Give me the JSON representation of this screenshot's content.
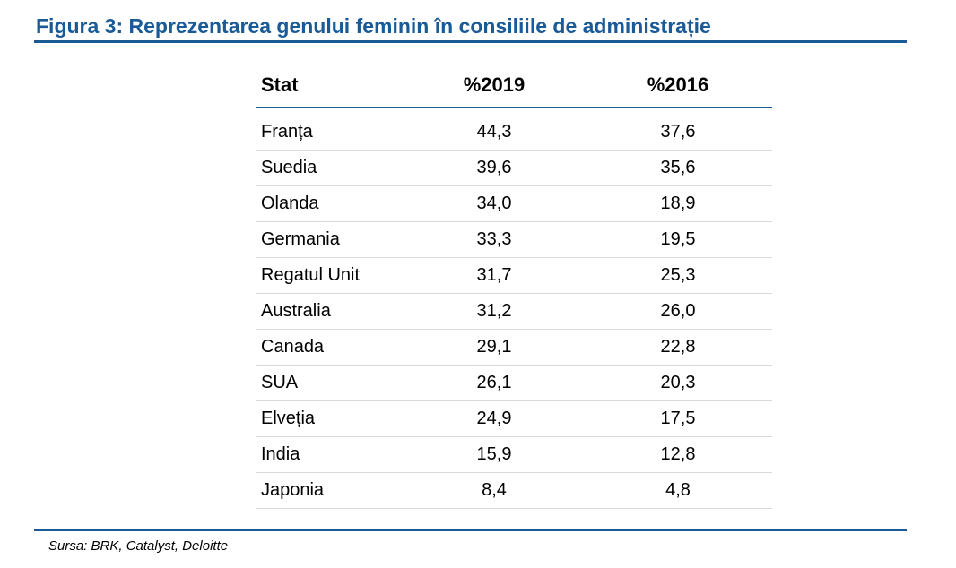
{
  "figure": {
    "title": "Figura 3:  Reprezentarea genului feminin în consiliile de administrație",
    "source": "Sursa: BRK, Catalyst, Deloitte"
  },
  "table": {
    "headers": [
      "Stat",
      "%2019",
      "%2016"
    ],
    "rows": [
      {
        "stat": "Franța",
        "y2019": "44,3",
        "y2016": "37,6"
      },
      {
        "stat": "Suedia",
        "y2019": "39,6",
        "y2016": "35,6"
      },
      {
        "stat": "Olanda",
        "y2019": "34,0",
        "y2016": "18,9"
      },
      {
        "stat": "Germania",
        "y2019": "33,3",
        "y2016": "19,5"
      },
      {
        "stat": "Regatul Unit",
        "y2019": "31,7",
        "y2016": "25,3"
      },
      {
        "stat": "Australia",
        "y2019": "31,2",
        "y2016": "26,0"
      },
      {
        "stat": "Canada",
        "y2019": "29,1",
        "y2016": "22,8"
      },
      {
        "stat": "SUA",
        "y2019": "26,1",
        "y2016": "20,3"
      },
      {
        "stat": "Elveția",
        "y2019": "24,9",
        "y2016": "17,5"
      },
      {
        "stat": "India",
        "y2019": "15,9",
        "y2016": "12,8"
      },
      {
        "stat": "Japonia",
        "y2019": "8,4",
        "y2016": "4,8"
      }
    ]
  },
  "colors": {
    "accent": "#1a5a96",
    "row_divider": "#d9d9d9"
  }
}
